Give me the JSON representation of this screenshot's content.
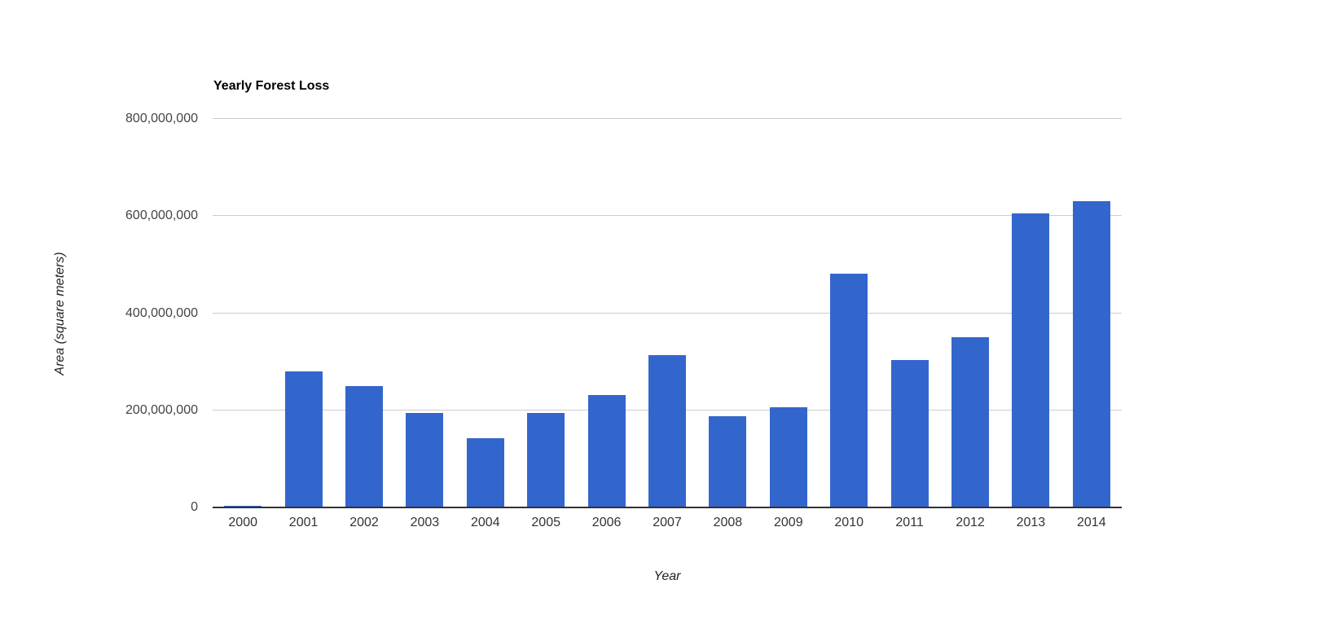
{
  "chart_data": {
    "type": "bar",
    "title": "Yearly Forest Loss",
    "xlabel": "Year",
    "ylabel": "Area (square meters)",
    "categories": [
      "2000",
      "2001",
      "2002",
      "2003",
      "2004",
      "2005",
      "2006",
      "2007",
      "2008",
      "2009",
      "2010",
      "2011",
      "2012",
      "2013",
      "2014"
    ],
    "values": [
      3000000,
      280000000,
      250000000,
      195000000,
      143000000,
      195000000,
      232000000,
      313000000,
      188000000,
      207000000,
      482000000,
      304000000,
      350000000,
      606000000,
      630000000
    ],
    "ylim": [
      0,
      800000000
    ],
    "yticks": [
      {
        "value": 0,
        "label": "0"
      },
      {
        "value": 200000000,
        "label": "200,000,000"
      },
      {
        "value": 400000000,
        "label": "400,000,000"
      },
      {
        "value": 600000000,
        "label": "600,000,000"
      },
      {
        "value": 800000000,
        "label": "800,000,000"
      }
    ],
    "grid": true,
    "legend_position": "none",
    "bar_color": "#3366cc",
    "gridline_color": "#cccccc",
    "baseline_color": "#333333",
    "ytick_label_color": "#444444",
    "xtick_label_color": "#333333",
    "title_color": "#000000",
    "axis_title_color": "#222222"
  }
}
